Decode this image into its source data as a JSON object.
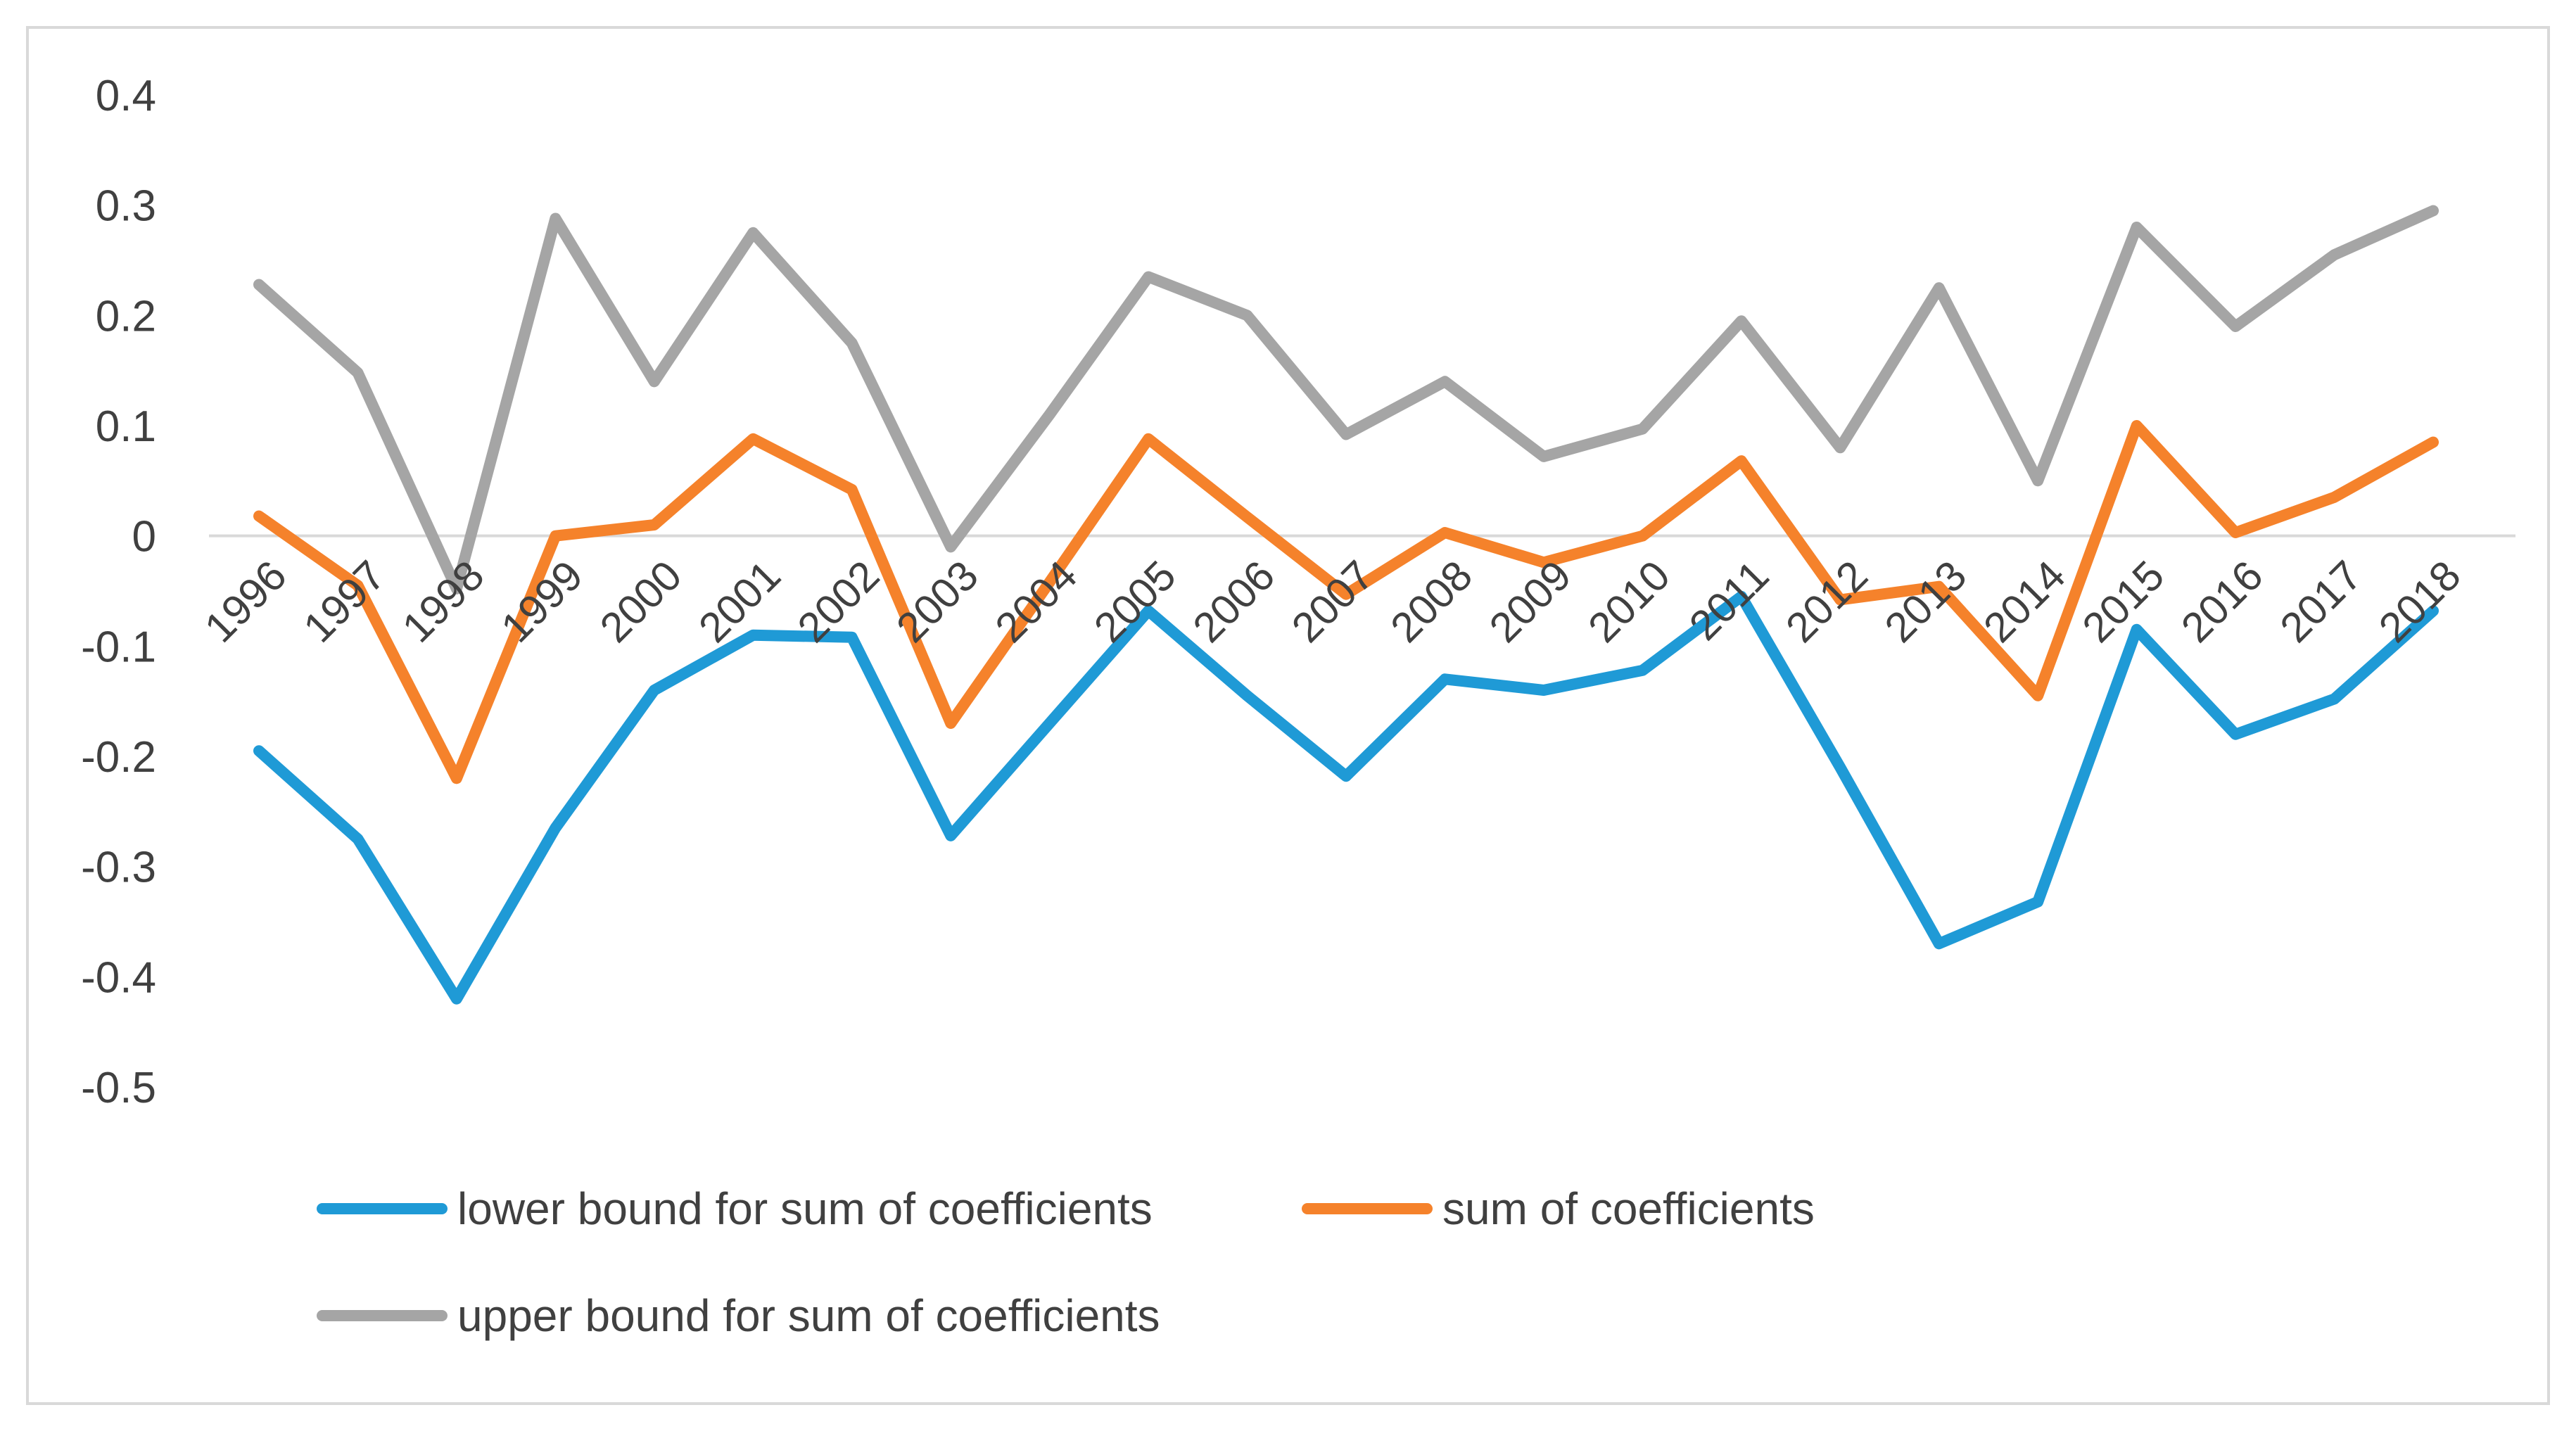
{
  "chart_data": {
    "type": "line",
    "title": "",
    "xlabel": "",
    "ylabel": "",
    "categories": [
      "1996",
      "1997",
      "1998",
      "1999",
      "2000",
      "2001",
      "2002",
      "2003",
      "2004",
      "2005",
      "2006",
      "2007",
      "2008",
      "2009",
      "2010",
      "2011",
      "2012",
      "2013",
      "2014",
      "2015",
      "2016",
      "2017",
      "2018"
    ],
    "ylim": [
      -0.5,
      0.4
    ],
    "yticks": [
      0.4,
      0.3,
      0.2,
      0.1,
      0,
      -0.1,
      -0.2,
      -0.3,
      -0.4,
      -0.5
    ],
    "ytick_labels": [
      "0.4",
      "0.3",
      "0.2",
      "0.1",
      "0",
      "-0.1",
      "-0.2",
      "-0.3",
      "-0.4",
      "-0.5"
    ],
    "gridlines": false,
    "zero_line": true,
    "legend_position": "bottom",
    "series": [
      {
        "name": "lower bound for sum of coefficients",
        "color": "#1f9ad6",
        "values": [
          -0.195,
          -0.275,
          -0.42,
          -0.265,
          -0.14,
          -0.09,
          -0.092,
          -0.272,
          -0.17,
          -0.068,
          -0.145,
          -0.218,
          -0.13,
          -0.14,
          -0.122,
          -0.055,
          -0.21,
          -0.37,
          -0.332,
          -0.085,
          -0.18,
          -0.148,
          -0.068
        ]
      },
      {
        "name": "sum of coefficients",
        "color": "#f5822b",
        "values": [
          0.018,
          -0.045,
          -0.22,
          0.0,
          0.01,
          0.088,
          0.042,
          -0.17,
          -0.042,
          0.088,
          0.017,
          -0.053,
          0.003,
          -0.024,
          0.0,
          0.068,
          -0.058,
          -0.046,
          -0.145,
          0.1,
          0.003,
          0.035,
          0.085
        ]
      },
      {
        "name": "upper bound for sum of coefficients",
        "color": "#a5a5a5",
        "values": [
          0.228,
          0.148,
          -0.048,
          0.288,
          0.14,
          0.275,
          0.175,
          -0.01,
          0.11,
          0.235,
          0.2,
          0.092,
          0.14,
          0.072,
          0.097,
          0.195,
          0.08,
          0.225,
          0.05,
          0.28,
          0.19,
          0.255,
          0.295
        ]
      }
    ]
  }
}
